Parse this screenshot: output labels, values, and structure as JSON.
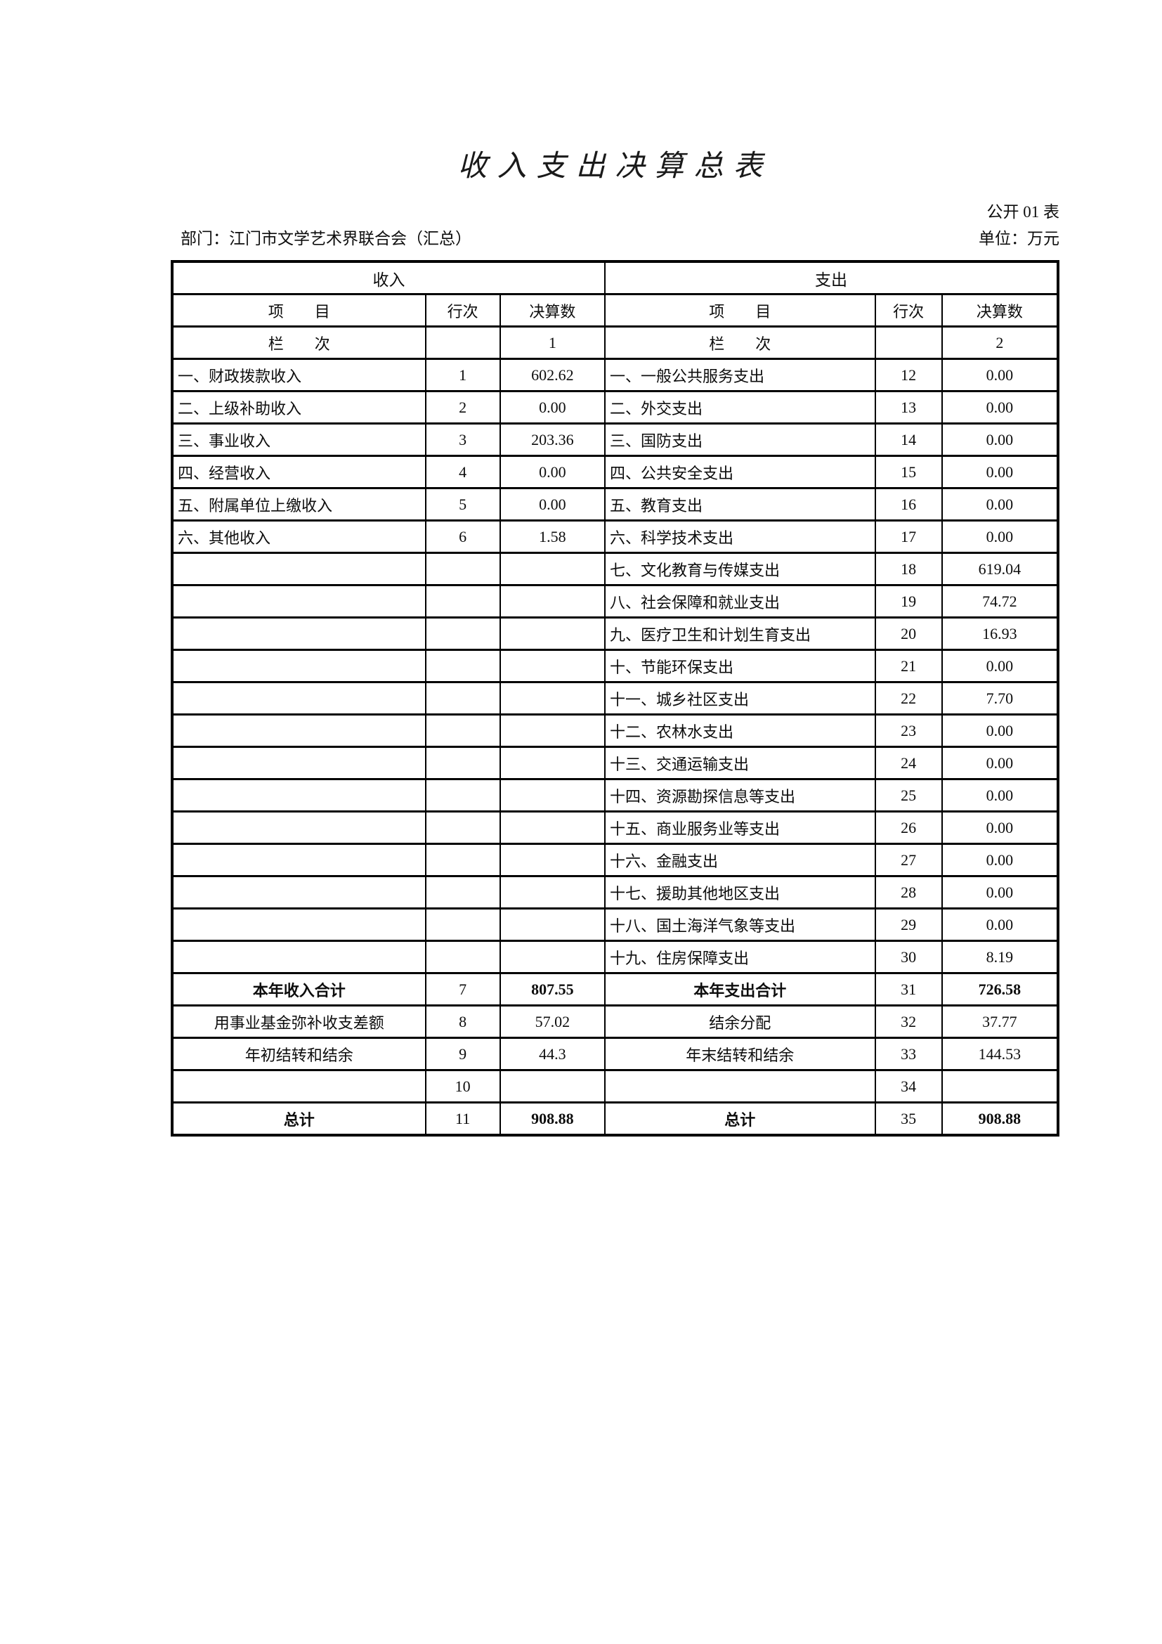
{
  "page": {
    "title": "收入支出决算总表",
    "form_code": "公开 01 表",
    "department": "部门：江门市文学艺术界联合会（汇总）",
    "unit": "单位：万元"
  },
  "table": {
    "income_section": "收入",
    "expense_section": "支出",
    "headers": {
      "item": "项　　目",
      "row_no": "行次",
      "amount": "决算数"
    },
    "lanci_label": "栏　　次",
    "income_col_index": "1",
    "expense_col_index": "2",
    "rows": [
      {
        "income": "一、财政拨款收入",
        "income_no": "1",
        "income_val": "602.62",
        "expense": "一、一般公共服务支出",
        "expense_no": "12",
        "expense_val": "0.00"
      },
      {
        "income": "二、上级补助收入",
        "income_no": "2",
        "income_val": "0.00",
        "expense": "二、外交支出",
        "expense_no": "13",
        "expense_val": "0.00"
      },
      {
        "income": "三、事业收入",
        "income_no": "3",
        "income_val": "203.36",
        "expense": "三、国防支出",
        "expense_no": "14",
        "expense_val": "0.00"
      },
      {
        "income": "四、经营收入",
        "income_no": "4",
        "income_val": "0.00",
        "expense": "四、公共安全支出",
        "expense_no": "15",
        "expense_val": "0.00"
      },
      {
        "income": "五、附属单位上缴收入",
        "income_no": "5",
        "income_val": "0.00",
        "expense": "五、教育支出",
        "expense_no": "16",
        "expense_val": "0.00"
      },
      {
        "income": "六、其他收入",
        "income_no": "6",
        "income_val": "1.58",
        "expense": "六、科学技术支出",
        "expense_no": "17",
        "expense_val": "0.00"
      },
      {
        "income": "",
        "income_no": "",
        "income_val": "",
        "expense": "七、文化教育与传媒支出",
        "expense_no": "18",
        "expense_val": "619.04"
      },
      {
        "income": "",
        "income_no": "",
        "income_val": "",
        "expense": "八、社会保障和就业支出",
        "expense_no": "19",
        "expense_val": "74.72"
      },
      {
        "income": "",
        "income_no": "",
        "income_val": "",
        "expense": "九、医疗卫生和计划生育支出",
        "expense_no": "20",
        "expense_val": "16.93"
      },
      {
        "income": "",
        "income_no": "",
        "income_val": "",
        "expense": "十、节能环保支出",
        "expense_no": "21",
        "expense_val": "0.00"
      },
      {
        "income": "",
        "income_no": "",
        "income_val": "",
        "expense": "十一、城乡社区支出",
        "expense_no": "22",
        "expense_val": "7.70"
      },
      {
        "income": "",
        "income_no": "",
        "income_val": "",
        "expense": "十二、农林水支出",
        "expense_no": "23",
        "expense_val": "0.00"
      },
      {
        "income": "",
        "income_no": "",
        "income_val": "",
        "expense": "十三、交通运输支出",
        "expense_no": "24",
        "expense_val": "0.00"
      },
      {
        "income": "",
        "income_no": "",
        "income_val": "",
        "expense": "十四、资源勘探信息等支出",
        "expense_no": "25",
        "expense_val": "0.00"
      },
      {
        "income": "",
        "income_no": "",
        "income_val": "",
        "expense": "十五、商业服务业等支出",
        "expense_no": "26",
        "expense_val": "0.00"
      },
      {
        "income": "",
        "income_no": "",
        "income_val": "",
        "expense": "十六、金融支出",
        "expense_no": "27",
        "expense_val": "0.00"
      },
      {
        "income": "",
        "income_no": "",
        "income_val": "",
        "expense": "十七、援助其他地区支出",
        "expense_no": "28",
        "expense_val": "0.00"
      },
      {
        "income": "",
        "income_no": "",
        "income_val": "",
        "expense": "十八、国土海洋气象等支出",
        "expense_no": "29",
        "expense_val": "0.00"
      },
      {
        "income": "",
        "income_no": "",
        "income_val": "",
        "expense": "十九、住房保障支出",
        "expense_no": "30",
        "expense_val": "8.19"
      }
    ],
    "summary_rows": [
      {
        "income": "本年收入合计",
        "income_no": "7",
        "income_val": "807.55",
        "expense": "本年支出合计",
        "expense_no": "31",
        "expense_val": "726.58",
        "emphasis": true
      },
      {
        "income": "用事业基金弥补收支差额",
        "income_no": "8",
        "income_val": "57.02",
        "expense": "结余分配",
        "expense_no": "32",
        "expense_val": "37.77",
        "emphasis": false
      },
      {
        "income": "年初结转和结余",
        "income_no": "9",
        "income_val": "44.3",
        "expense": "年末结转和结余",
        "expense_no": "33",
        "expense_val": "144.53",
        "emphasis": false
      },
      {
        "income": "",
        "income_no": "10",
        "income_val": "",
        "expense": "",
        "expense_no": "34",
        "expense_val": "",
        "emphasis": false
      },
      {
        "income": "总计",
        "income_no": "11",
        "income_val": "908.88",
        "expense": "总计",
        "expense_no": "35",
        "expense_val": "908.88",
        "emphasis": true
      }
    ]
  }
}
